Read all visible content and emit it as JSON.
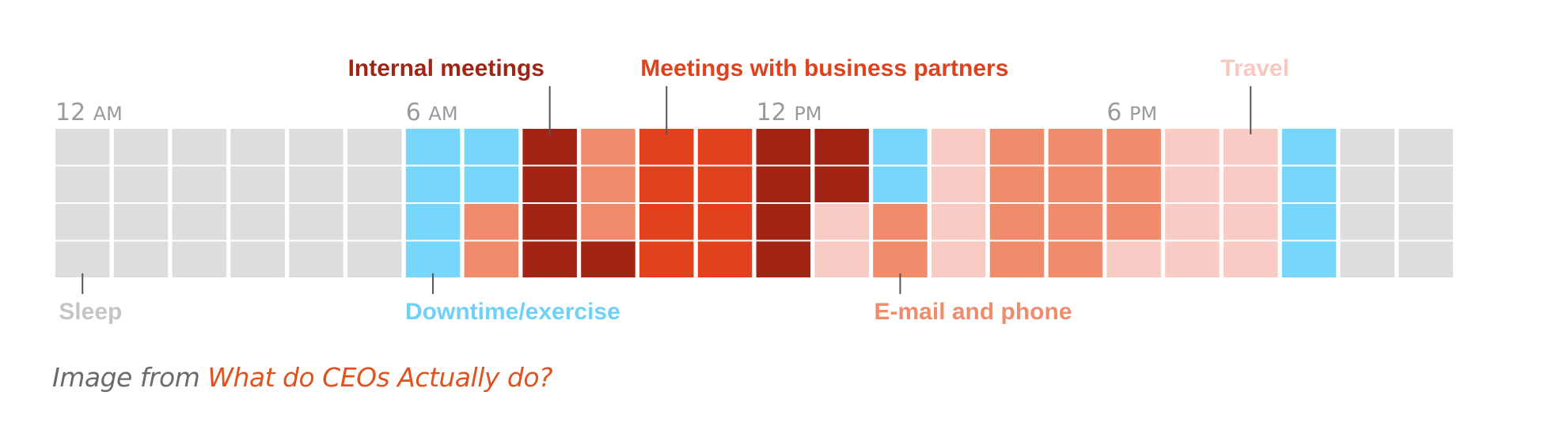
{
  "chart_data": {
    "type": "heatmap",
    "title": "",
    "time_labels": [
      {
        "hour": 0,
        "num": "12",
        "ampm": "AM"
      },
      {
        "hour": 6,
        "num": "6",
        "ampm": "AM"
      },
      {
        "hour": 12,
        "num": "12",
        "ampm": "PM"
      },
      {
        "hour": 18,
        "num": "6",
        "ampm": "PM"
      }
    ],
    "hours": 24,
    "slots_per_hour": 4,
    "categories": [
      {
        "key": "sleep",
        "name": "Sleep",
        "color": "#dcdddf",
        "label_color": "#c4c5c7",
        "label_row": "bottom",
        "leader_hour": 0
      },
      {
        "key": "downtime",
        "name": "Downtime/exercise",
        "color": "#77d7fb",
        "label_color": "#6fd0f8",
        "label_row": "bottom",
        "leader_hour": 6
      },
      {
        "key": "internal",
        "name": "Internal meetings",
        "color": "#a22414",
        "label_color": "#a22414",
        "label_row": "top",
        "leader_hour": 8
      },
      {
        "key": "partners",
        "name": "Meetings with business partners",
        "color": "#e0421e",
        "label_color": "#e0421e",
        "label_row": "top",
        "leader_hour": 10
      },
      {
        "key": "email",
        "name": "E-mail and phone",
        "color": "#f08c6c",
        "label_color": "#f08c6c",
        "label_row": "bottom",
        "leader_hour": 14
      },
      {
        "key": "travel",
        "name": "Travel",
        "color": "#f8cbc4",
        "label_color": "#f8c8c0",
        "label_row": "top",
        "leader_hour": 20
      }
    ],
    "grid": [
      [
        "sleep",
        "sleep",
        "sleep",
        "sleep"
      ],
      [
        "sleep",
        "sleep",
        "sleep",
        "sleep"
      ],
      [
        "sleep",
        "sleep",
        "sleep",
        "sleep"
      ],
      [
        "sleep",
        "sleep",
        "sleep",
        "sleep"
      ],
      [
        "sleep",
        "sleep",
        "sleep",
        "sleep"
      ],
      [
        "sleep",
        "sleep",
        "sleep",
        "sleep"
      ],
      [
        "downtime",
        "downtime",
        "downtime",
        "downtime"
      ],
      [
        "downtime",
        "downtime",
        "email",
        "email"
      ],
      [
        "internal",
        "internal",
        "internal",
        "internal"
      ],
      [
        "email",
        "email",
        "email",
        "internal"
      ],
      [
        "partners",
        "partners",
        "partners",
        "partners"
      ],
      [
        "partners",
        "partners",
        "partners",
        "partners"
      ],
      [
        "internal",
        "internal",
        "internal",
        "internal"
      ],
      [
        "internal",
        "internal",
        "travel",
        "travel"
      ],
      [
        "downtime",
        "downtime",
        "email",
        "email"
      ],
      [
        "travel",
        "travel",
        "travel",
        "travel"
      ],
      [
        "email",
        "email",
        "email",
        "email"
      ],
      [
        "email",
        "email",
        "email",
        "email"
      ],
      [
        "email",
        "email",
        "email",
        "travel"
      ],
      [
        "travel",
        "travel",
        "travel",
        "travel"
      ],
      [
        "travel",
        "travel",
        "travel",
        "travel"
      ],
      [
        "downtime",
        "downtime",
        "downtime",
        "downtime"
      ],
      [
        "sleep",
        "sleep",
        "sleep",
        "sleep"
      ],
      [
        "sleep",
        "sleep",
        "sleep",
        "sleep"
      ]
    ]
  },
  "caption": {
    "prefix": "Image from ",
    "source_link": "What do CEOs Actually do?"
  }
}
